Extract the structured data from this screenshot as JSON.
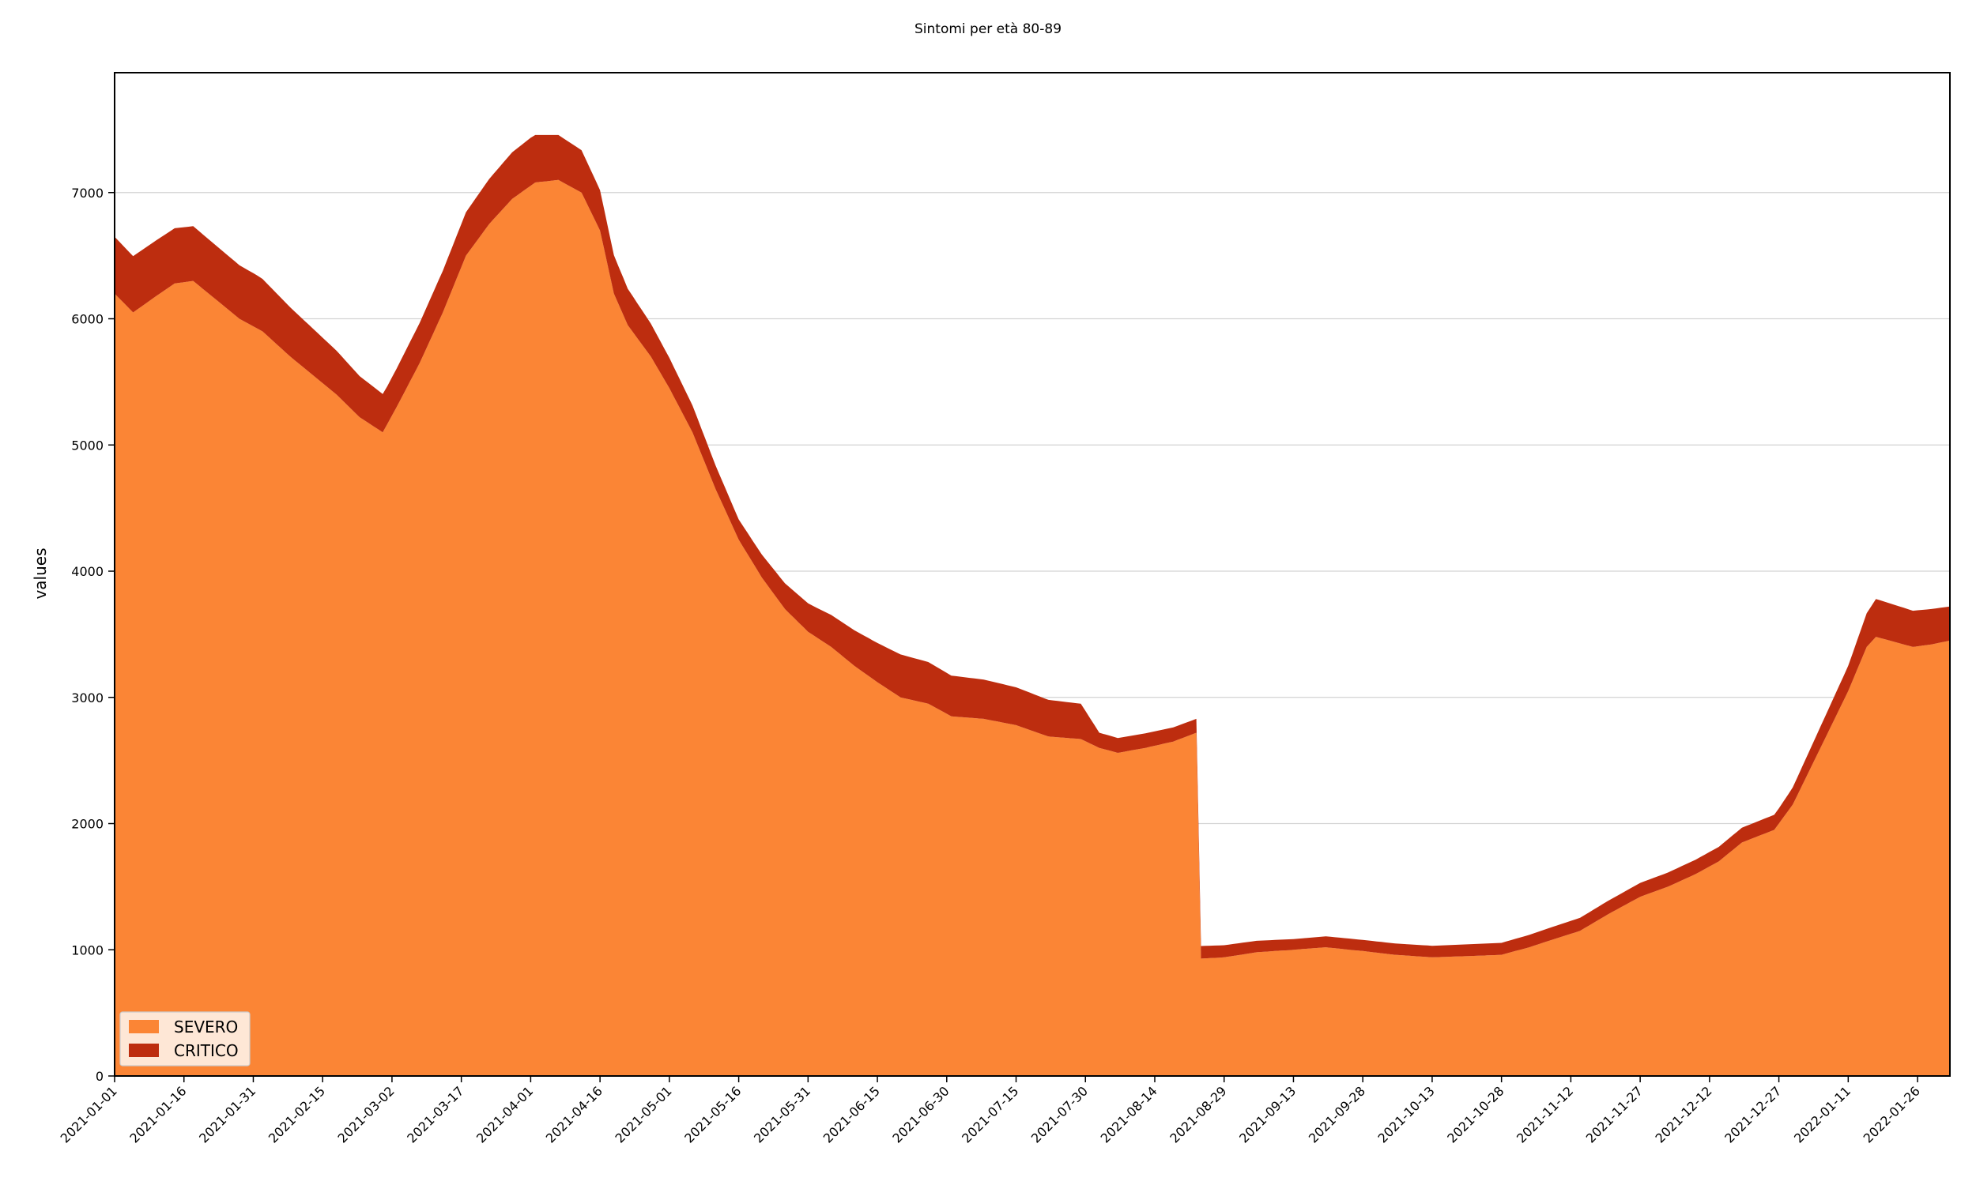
{
  "chart_data": {
    "type": "area",
    "stacked": true,
    "title": "Sintomi per età 80-89",
    "xlabel": "",
    "ylabel": "values",
    "ylim": [
      0,
      7950
    ],
    "yticks": [
      0,
      1000,
      2000,
      3000,
      4000,
      5000,
      6000,
      7000
    ],
    "xlim": [
      "2021-01-01",
      "2022-02-02"
    ],
    "xticks": [
      "2021-01-01",
      "2021-01-16",
      "2021-01-31",
      "2021-02-15",
      "2021-03-02",
      "2021-03-17",
      "2021-04-01",
      "2021-04-16",
      "2021-05-01",
      "2021-05-16",
      "2021-05-31",
      "2021-06-15",
      "2021-06-30",
      "2021-07-15",
      "2021-07-30",
      "2021-08-14",
      "2021-08-29",
      "2021-09-13",
      "2021-09-28",
      "2021-10-13",
      "2021-10-28",
      "2021-11-12",
      "2021-11-27",
      "2021-12-12",
      "2021-12-27",
      "2022-01-11",
      "2022-01-26"
    ],
    "grid": "horizontal",
    "legend": "lower-left",
    "series": [
      {
        "name": "SEVERO",
        "color": "#fb8535",
        "points": [
          {
            "x": "2021-01-01",
            "y": 6200
          },
          {
            "x": "2021-01-05",
            "y": 6050
          },
          {
            "x": "2021-01-10",
            "y": 6180
          },
          {
            "x": "2021-01-14",
            "y": 6280
          },
          {
            "x": "2021-01-18",
            "y": 6300
          },
          {
            "x": "2021-01-23",
            "y": 6150
          },
          {
            "x": "2021-01-28",
            "y": 6000
          },
          {
            "x": "2021-02-02",
            "y": 5900
          },
          {
            "x": "2021-02-08",
            "y": 5700
          },
          {
            "x": "2021-02-13",
            "y": 5550
          },
          {
            "x": "2021-02-18",
            "y": 5400
          },
          {
            "x": "2021-02-23",
            "y": 5220
          },
          {
            "x": "2021-02-28",
            "y": 5100
          },
          {
            "x": "2021-03-03",
            "y": 5300
          },
          {
            "x": "2021-03-08",
            "y": 5650
          },
          {
            "x": "2021-03-13",
            "y": 6050
          },
          {
            "x": "2021-03-18",
            "y": 6500
          },
          {
            "x": "2021-03-23",
            "y": 6750
          },
          {
            "x": "2021-03-28",
            "y": 6950
          },
          {
            "x": "2021-04-02",
            "y": 7080
          },
          {
            "x": "2021-04-07",
            "y": 7100
          },
          {
            "x": "2021-04-12",
            "y": 7000
          },
          {
            "x": "2021-04-16",
            "y": 6700
          },
          {
            "x": "2021-04-19",
            "y": 6200
          },
          {
            "x": "2021-04-22",
            "y": 5950
          },
          {
            "x": "2021-04-27",
            "y": 5700
          },
          {
            "x": "2021-05-01",
            "y": 5450
          },
          {
            "x": "2021-05-06",
            "y": 5100
          },
          {
            "x": "2021-05-11",
            "y": 4650
          },
          {
            "x": "2021-05-16",
            "y": 4250
          },
          {
            "x": "2021-05-21",
            "y": 3950
          },
          {
            "x": "2021-05-26",
            "y": 3700
          },
          {
            "x": "2021-05-31",
            "y": 3520
          },
          {
            "x": "2021-06-05",
            "y": 3400
          },
          {
            "x": "2021-06-10",
            "y": 3250
          },
          {
            "x": "2021-06-15",
            "y": 3120
          },
          {
            "x": "2021-06-20",
            "y": 3000
          },
          {
            "x": "2021-06-26",
            "y": 2950
          },
          {
            "x": "2021-07-01",
            "y": 2850
          },
          {
            "x": "2021-07-08",
            "y": 2830
          },
          {
            "x": "2021-07-15",
            "y": 2780
          },
          {
            "x": "2021-07-22",
            "y": 2690
          },
          {
            "x": "2021-07-29",
            "y": 2670
          },
          {
            "x": "2021-08-02",
            "y": 2600
          },
          {
            "x": "2021-08-06",
            "y": 2560
          },
          {
            "x": "2021-08-12",
            "y": 2600
          },
          {
            "x": "2021-08-18",
            "y": 2650
          },
          {
            "x": "2021-08-23",
            "y": 2720
          },
          {
            "x": "2021-08-24",
            "y": 930
          },
          {
            "x": "2021-08-29",
            "y": 940
          },
          {
            "x": "2021-09-05",
            "y": 980
          },
          {
            "x": "2021-09-13",
            "y": 1000
          },
          {
            "x": "2021-09-20",
            "y": 1020
          },
          {
            "x": "2021-09-28",
            "y": 990
          },
          {
            "x": "2021-10-05",
            "y": 960
          },
          {
            "x": "2021-10-13",
            "y": 940
          },
          {
            "x": "2021-10-21",
            "y": 950
          },
          {
            "x": "2021-10-28",
            "y": 960
          },
          {
            "x": "2021-11-03",
            "y": 1020
          },
          {
            "x": "2021-11-08",
            "y": 1080
          },
          {
            "x": "2021-11-14",
            "y": 1150
          },
          {
            "x": "2021-11-20",
            "y": 1280
          },
          {
            "x": "2021-11-27",
            "y": 1420
          },
          {
            "x": "2021-12-03",
            "y": 1500
          },
          {
            "x": "2021-12-09",
            "y": 1600
          },
          {
            "x": "2021-12-14",
            "y": 1700
          },
          {
            "x": "2021-12-19",
            "y": 1850
          },
          {
            "x": "2021-12-26",
            "y": 1950
          },
          {
            "x": "2021-12-30",
            "y": 2150
          },
          {
            "x": "2022-01-03",
            "y": 2450
          },
          {
            "x": "2022-01-07",
            "y": 2750
          },
          {
            "x": "2022-01-11",
            "y": 3050
          },
          {
            "x": "2022-01-15",
            "y": 3400
          },
          {
            "x": "2022-01-17",
            "y": 3480
          },
          {
            "x": "2022-01-20",
            "y": 3450
          },
          {
            "x": "2022-01-25",
            "y": 3400
          },
          {
            "x": "2022-01-29",
            "y": 3420
          },
          {
            "x": "2022-02-02",
            "y": 3450
          }
        ]
      },
      {
        "name": "CRITICO",
        "color": "#bd2d0f",
        "points": [
          {
            "x": "2021-01-01",
            "y": 450
          },
          {
            "x": "2021-02-01",
            "y": 420
          },
          {
            "x": "2021-03-01",
            "y": 300
          },
          {
            "x": "2021-04-01",
            "y": 380
          },
          {
            "x": "2021-04-16",
            "y": 320
          },
          {
            "x": "2021-05-16",
            "y": 160
          },
          {
            "x": "2021-06-01",
            "y": 230
          },
          {
            "x": "2021-06-20",
            "y": 340
          },
          {
            "x": "2021-07-15",
            "y": 300
          },
          {
            "x": "2021-07-29",
            "y": 280
          },
          {
            "x": "2021-08-02",
            "y": 120
          },
          {
            "x": "2021-08-23",
            "y": 110
          },
          {
            "x": "2021-08-24",
            "y": 100
          },
          {
            "x": "2021-09-13",
            "y": 85
          },
          {
            "x": "2021-10-28",
            "y": 95
          },
          {
            "x": "2021-11-27",
            "y": 110
          },
          {
            "x": "2021-12-27",
            "y": 120
          },
          {
            "x": "2022-01-11",
            "y": 200
          },
          {
            "x": "2022-01-17",
            "y": 300
          },
          {
            "x": "2022-01-29",
            "y": 280
          },
          {
            "x": "2022-02-02",
            "y": 270
          }
        ]
      }
    ]
  }
}
